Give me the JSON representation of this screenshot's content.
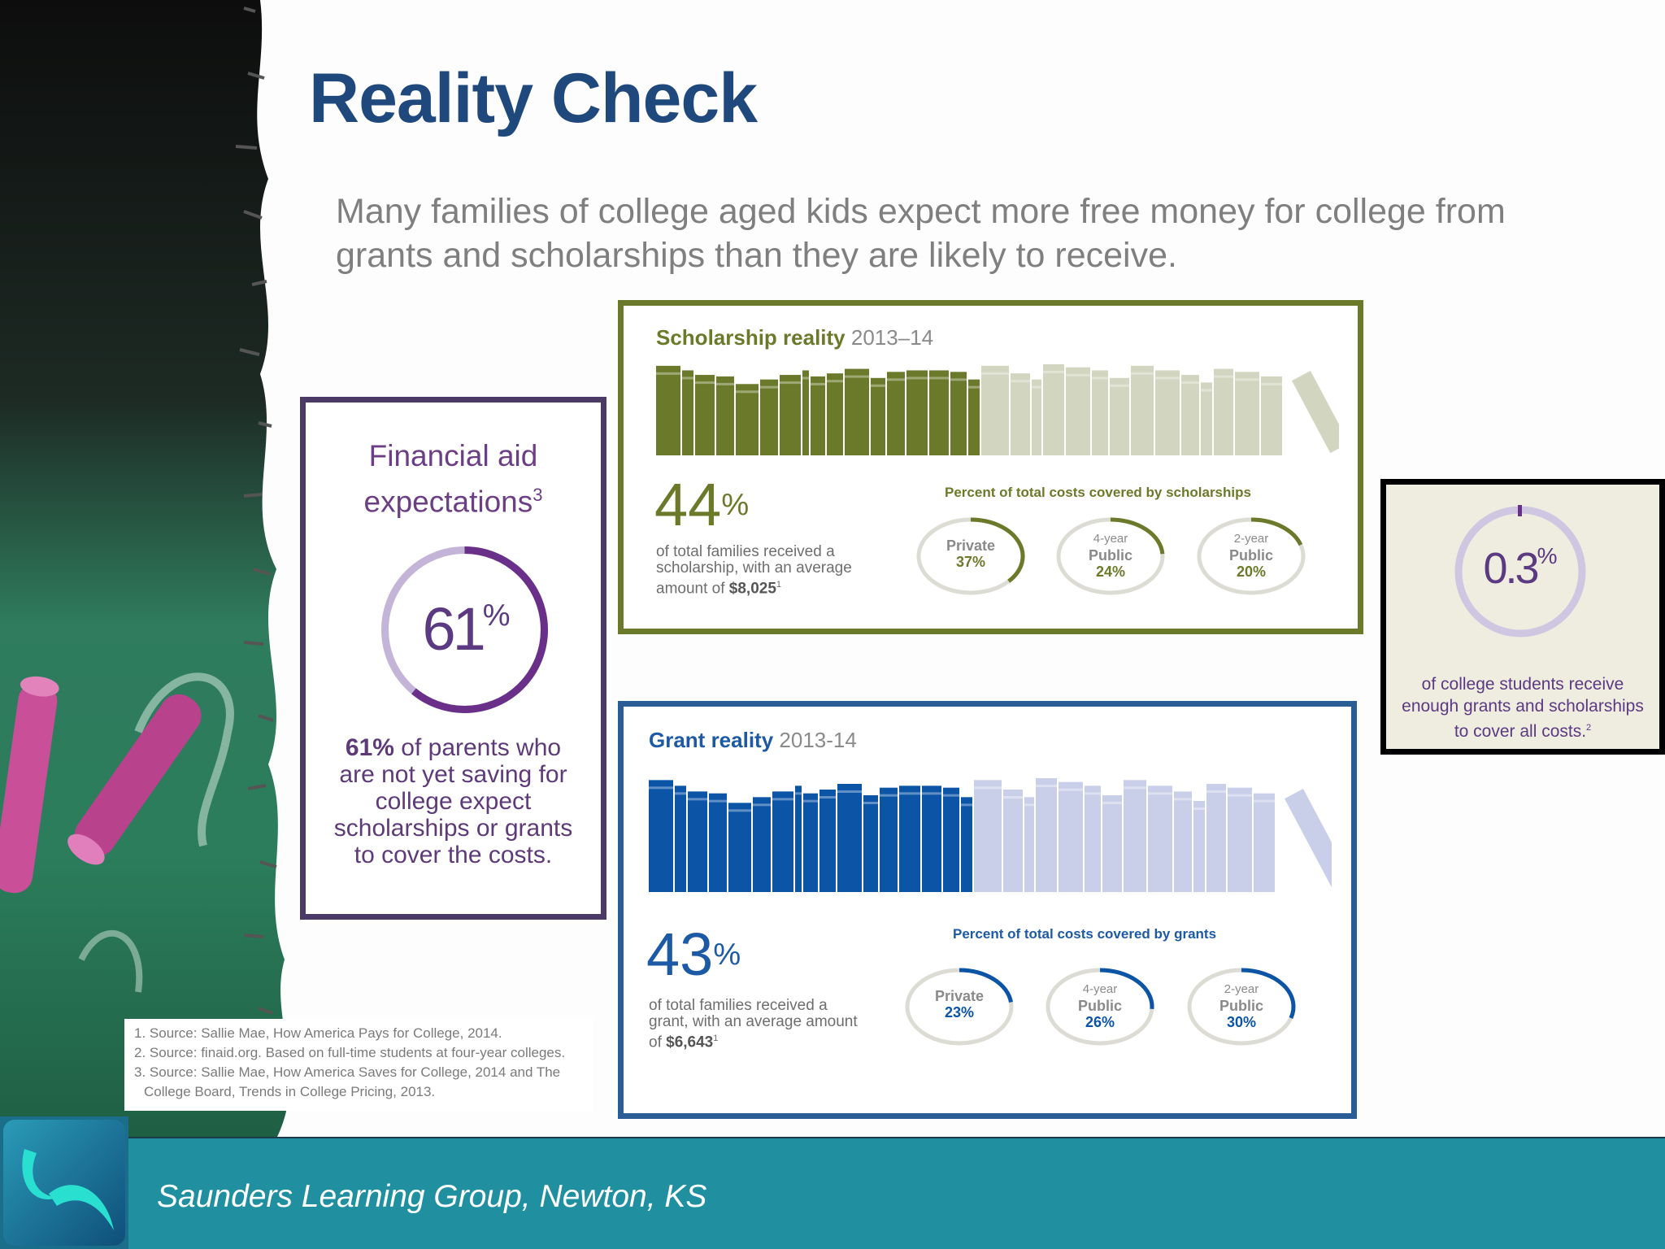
{
  "slide": {
    "title": "Reality Check",
    "subtitle": "Many families of college aged kids expect more free money for college from grants and scholarships than they are likely to receive."
  },
  "financial_aid": {
    "title": "Financial aid expectations",
    "title_ref": "3",
    "percent": "61",
    "percent_sign": "%",
    "percent_value": 61,
    "text_bold": "61%",
    "text_rest": " of parents who are not yet saving for college expect scholarships or grants to cover the costs.",
    "color": "#6c3f85"
  },
  "scholarship": {
    "title": "Scholarship reality",
    "year": "2013–14",
    "big_percent": "44",
    "percent_sign": "%",
    "description": "of total families received a scholarship, with an average amount of ",
    "amount": "$8,025",
    "amount_ref": "1",
    "caption": "Percent of total costs covered by scholarships",
    "color": "#6b7a2a",
    "light_color": "#d2d5bf",
    "rings": [
      {
        "type": "",
        "label": "Private",
        "value": "37%",
        "pct": 37
      },
      {
        "type": "4-year",
        "label": "Public",
        "value": "24%",
        "pct": 24
      },
      {
        "type": "2-year",
        "label": "Public",
        "value": "20%",
        "pct": 20
      }
    ]
  },
  "grant": {
    "title": "Grant reality",
    "year": "2013-14",
    "big_percent": "43",
    "percent_sign": "%",
    "description": "of total families received a grant, with an average amount of ",
    "amount": "$6,643",
    "amount_ref": "1",
    "caption": "Percent of total costs covered by grants",
    "color": "#0c54a6",
    "light_color": "#c9cfe8",
    "rings": [
      {
        "type": "",
        "label": "Private",
        "value": "23%",
        "pct": 23
      },
      {
        "type": "4-year",
        "label": "Public",
        "value": "26%",
        "pct": 26
      },
      {
        "type": "2-year",
        "label": "Public",
        "value": "30%",
        "pct": 30
      }
    ]
  },
  "enough": {
    "percent": "0.3",
    "percent_sign": "%",
    "text": "of college students receive enough grants and scholarships to cover all costs.",
    "ref": "2"
  },
  "sources": [
    "1. Source: Sallie Mae, How America Pays for College, 2014.",
    "2. Source: finaid.org. Based on full-time students at four-year colleges.",
    "3. Source: Sallie Mae, How America Saves for College, 2014 and The College Board, Trends in College Pricing, 2013."
  ],
  "footer": {
    "text": "Saunders Learning Group, Newton, KS"
  }
}
